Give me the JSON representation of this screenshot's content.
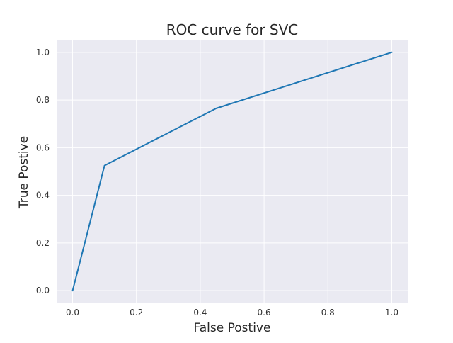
{
  "chart_data": {
    "type": "line",
    "title": "ROC curve for SVC",
    "xlabel": "False Postive",
    "ylabel": "True Postive",
    "xlim": [
      -0.05,
      1.05
    ],
    "ylim": [
      -0.05,
      1.05
    ],
    "x_ticks": [
      0.0,
      0.2,
      0.4,
      0.6,
      0.8,
      1.0
    ],
    "y_ticks": [
      0.0,
      0.2,
      0.4,
      0.6,
      0.8,
      1.0
    ],
    "x_tick_labels": [
      "0.0",
      "0.2",
      "0.4",
      "0.6",
      "0.8",
      "1.0"
    ],
    "y_tick_labels": [
      "0.0",
      "0.2",
      "0.4",
      "0.6",
      "0.8",
      "1.0"
    ],
    "grid": true,
    "series": [
      {
        "x": [
          0.0,
          0.1,
          0.45,
          1.0
        ],
        "y": [
          0.0,
          0.525,
          0.765,
          1.0
        ],
        "color": "#1f77b4"
      }
    ]
  },
  "colors": {
    "plot_background": "#eaeaf2",
    "grid": "#ffffff",
    "line": "#1f77b4"
  }
}
